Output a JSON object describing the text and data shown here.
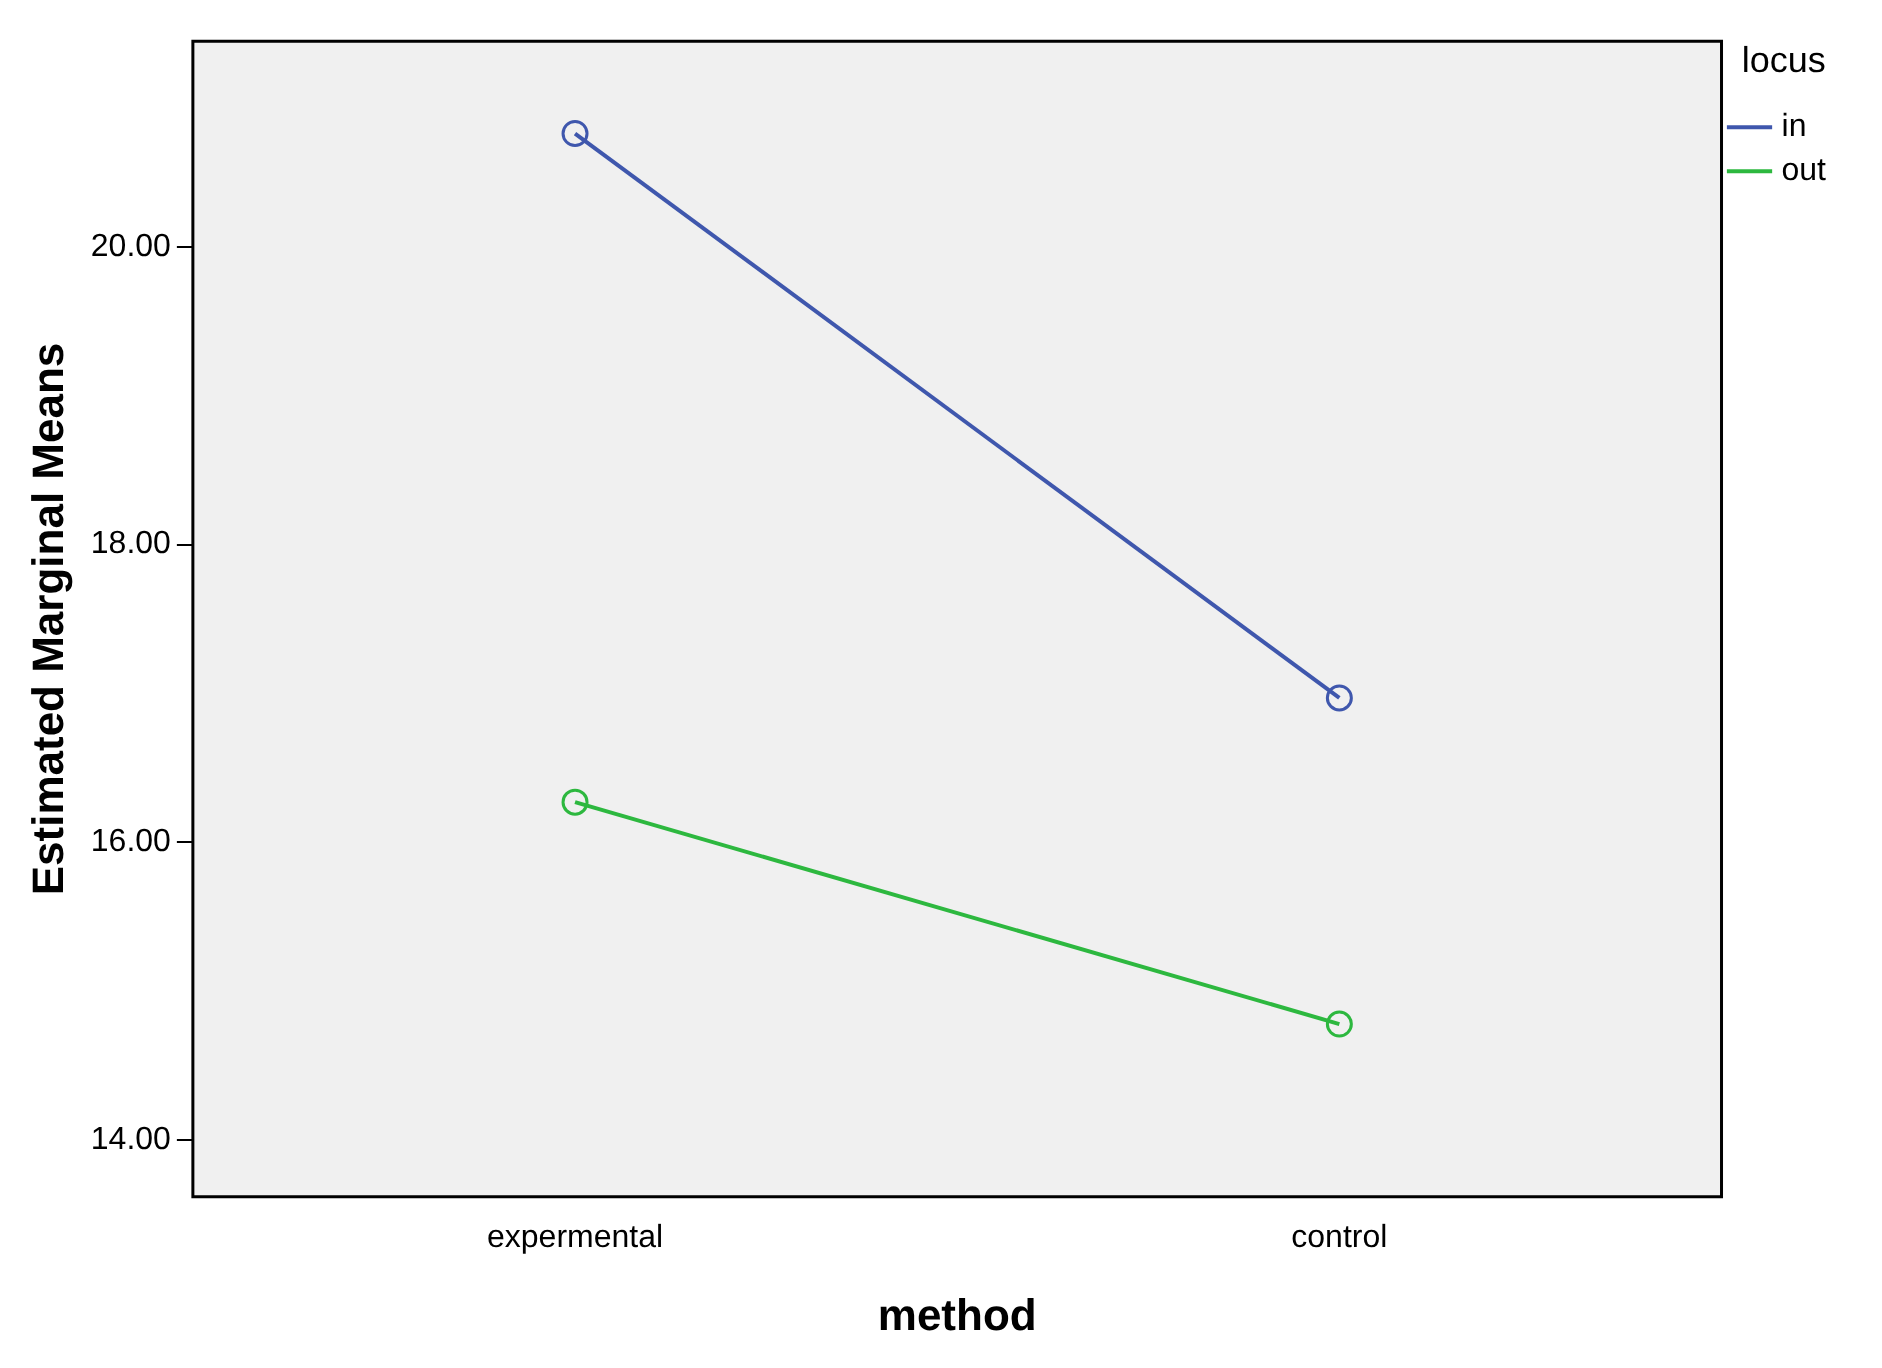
{
  "chart_data": {
    "type": "line",
    "xlabel": "method",
    "ylabel": "Estimated Marginal Means",
    "legend_title": "locus",
    "categories": [
      "expermental",
      "control"
    ],
    "series": [
      {
        "name": "in",
        "color": "#3f57ad",
        "values": [
          20.76,
          16.97
        ]
      },
      {
        "name": "out",
        "color": "#2db83f",
        "values": [
          16.27,
          14.78
        ]
      }
    ],
    "ylim": [
      13.62,
      21.38
    ],
    "yticks": [
      {
        "value": 14,
        "label": "14.00"
      },
      {
        "value": 16,
        "label": "16.00"
      },
      {
        "value": 18,
        "label": "18.00"
      },
      {
        "value": 20,
        "label": "20.00"
      }
    ],
    "grid": false,
    "legend": "top right",
    "marker": "circle",
    "line_style": "solid"
  }
}
